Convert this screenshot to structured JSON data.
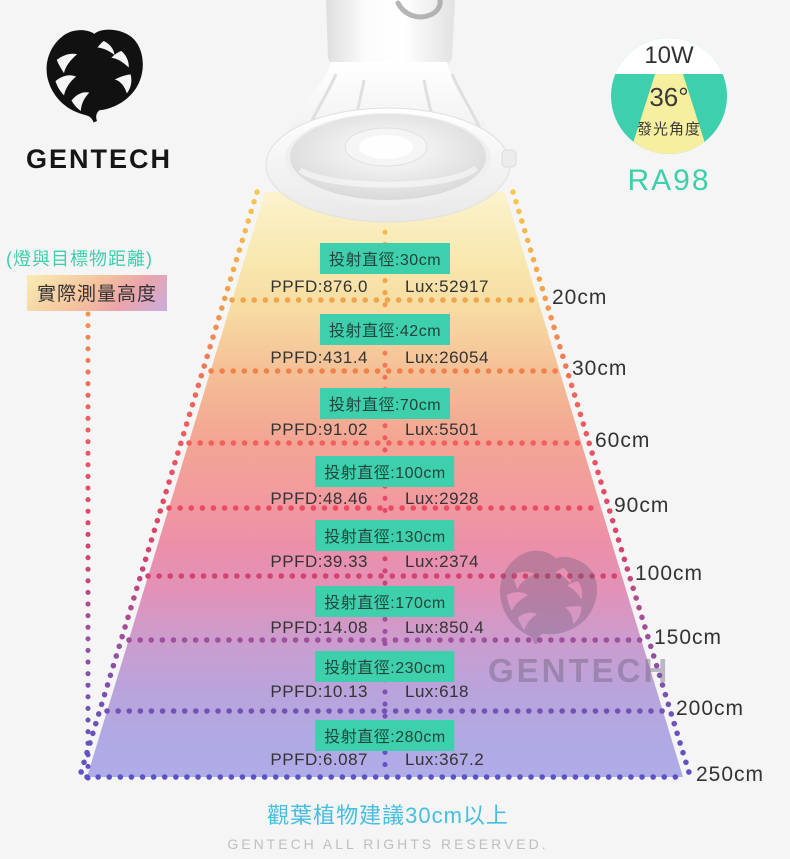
{
  "brand": {
    "logo_text": "GENTECH",
    "logo_icon": "monstera-leaf"
  },
  "specs": {
    "wattage": "10W",
    "beam_angle_value": "36°",
    "beam_angle_label": "發光角度",
    "cri": "RA98"
  },
  "left_labels": {
    "distance_note": "(燈與目標物距離)",
    "measure_label": "實際測量高度"
  },
  "beam": {
    "rows": [
      {
        "diameter": "投射直徑:30cm",
        "ppfd": "PPFD:876.0",
        "lux": "Lux:52917",
        "distance": "20cm",
        "line_color": "#F1A44B"
      },
      {
        "diameter": "投射直徑:42cm",
        "ppfd": "PPFD:431.4",
        "lux": "Lux:26054",
        "distance": "30cm",
        "line_color": "#EF8149"
      },
      {
        "diameter": "投射直徑:70cm",
        "ppfd": "PPFD:91.02",
        "lux": "Lux:5501",
        "distance": "60cm",
        "line_color": "#F0615C"
      },
      {
        "diameter": "投射直徑:100cm",
        "ppfd": "PPFD:48.46",
        "lux": "Lux:2928",
        "distance": "90cm",
        "line_color": "#EC4A62"
      },
      {
        "diameter": "投射直徑:130cm",
        "ppfd": "PPFD:39.33",
        "lux": "Lux:2374",
        "distance": "100cm",
        "line_color": "#D4426F"
      },
      {
        "diameter": "投射直徑:170cm",
        "ppfd": "PPFD:14.08",
        "lux": "Lux:850.4",
        "distance": "150cm",
        "line_color": "#9F4F9D"
      },
      {
        "diameter": "投射直徑:230cm",
        "ppfd": "PPFD:10.13",
        "lux": "Lux:618",
        "distance": "200cm",
        "line_color": "#7452B4"
      },
      {
        "diameter": "投射直徑:280cm",
        "ppfd": "PPFD:6.087",
        "lux": "Lux:367.2",
        "distance": "250cm",
        "line_color": "#5B52C6"
      }
    ]
  },
  "watermark": {
    "logo_text": "GENTECH",
    "logo_icon": "monstera-leaf"
  },
  "footer": {
    "note": "觀葉植物建議30cm以上",
    "copyright": "GENTECH ALL RIGHTS RESERVED."
  },
  "colors": {
    "accent_teal": "#3ECFAC",
    "note_blue": "#45BEE0",
    "beam_top": "#FBF3CE",
    "beam_bottom": "#AFACE8"
  }
}
